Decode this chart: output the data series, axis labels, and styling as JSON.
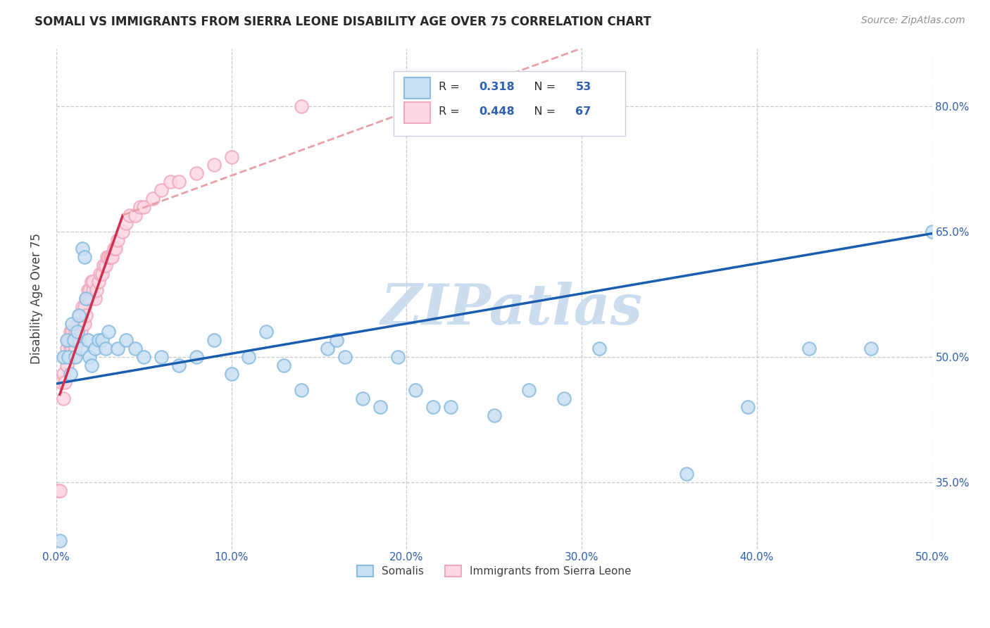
{
  "title": "SOMALI VS IMMIGRANTS FROM SIERRA LEONE DISABILITY AGE OVER 75 CORRELATION CHART",
  "source": "Source: ZipAtlas.com",
  "ylabel": "Disability Age Over 75",
  "xlim": [
    0.0,
    0.5
  ],
  "ylim": [
    0.27,
    0.87
  ],
  "xtick_labels": [
    "0.0%",
    "10.0%",
    "20.0%",
    "30.0%",
    "40.0%",
    "50.0%"
  ],
  "xtick_vals": [
    0.0,
    0.1,
    0.2,
    0.3,
    0.4,
    0.5
  ],
  "ytick_labels": [
    "35.0%",
    "50.0%",
    "65.0%",
    "80.0%"
  ],
  "ytick_vals": [
    0.35,
    0.5,
    0.65,
    0.8
  ],
  "legend_labels": [
    "Somalis",
    "Immigrants from Sierra Leone"
  ],
  "blue_color": "#88bbdd",
  "blue_fill": "#c8e0f4",
  "pink_color": "#f0a8be",
  "pink_fill": "#fcd8e4",
  "blue_line_color": "#1a5db0",
  "pink_line_color": "#d03050",
  "pink_dash_color": "#e8a0a8",
  "watermark_color": "#ccddf0",
  "title_color": "#282828",
  "source_color": "#909090",
  "blue_scatter_x": [
    0.002,
    0.004,
    0.006,
    0.007,
    0.008,
    0.009,
    0.01,
    0.011,
    0.012,
    0.013,
    0.014,
    0.015,
    0.016,
    0.017,
    0.018,
    0.019,
    0.02,
    0.022,
    0.024,
    0.026,
    0.028,
    0.03,
    0.035,
    0.04,
    0.045,
    0.05,
    0.06,
    0.07,
    0.08,
    0.09,
    0.1,
    0.11,
    0.12,
    0.13,
    0.14,
    0.155,
    0.16,
    0.165,
    0.175,
    0.185,
    0.195,
    0.205,
    0.215,
    0.225,
    0.25,
    0.27,
    0.29,
    0.31,
    0.36,
    0.395,
    0.43,
    0.465,
    0.5
  ],
  "blue_scatter_y": [
    0.28,
    0.5,
    0.52,
    0.5,
    0.48,
    0.54,
    0.52,
    0.5,
    0.53,
    0.55,
    0.51,
    0.63,
    0.62,
    0.57,
    0.52,
    0.5,
    0.49,
    0.51,
    0.52,
    0.52,
    0.51,
    0.53,
    0.51,
    0.52,
    0.51,
    0.5,
    0.5,
    0.49,
    0.5,
    0.52,
    0.48,
    0.5,
    0.53,
    0.49,
    0.46,
    0.51,
    0.52,
    0.5,
    0.45,
    0.44,
    0.5,
    0.46,
    0.44,
    0.44,
    0.43,
    0.46,
    0.45,
    0.51,
    0.36,
    0.44,
    0.51,
    0.51,
    0.65
  ],
  "pink_scatter_x": [
    0.001,
    0.002,
    0.003,
    0.004,
    0.004,
    0.005,
    0.005,
    0.006,
    0.006,
    0.007,
    0.007,
    0.008,
    0.008,
    0.009,
    0.009,
    0.01,
    0.01,
    0.011,
    0.011,
    0.012,
    0.012,
    0.013,
    0.013,
    0.014,
    0.014,
    0.015,
    0.015,
    0.016,
    0.016,
    0.017,
    0.017,
    0.018,
    0.018,
    0.019,
    0.019,
    0.02,
    0.02,
    0.021,
    0.021,
    0.022,
    0.023,
    0.024,
    0.025,
    0.026,
    0.027,
    0.028,
    0.029,
    0.03,
    0.031,
    0.032,
    0.033,
    0.034,
    0.035,
    0.038,
    0.04,
    0.042,
    0.045,
    0.048,
    0.05,
    0.055,
    0.06,
    0.065,
    0.07,
    0.08,
    0.09,
    0.1,
    0.14
  ],
  "pink_scatter_y": [
    0.34,
    0.34,
    0.47,
    0.45,
    0.48,
    0.47,
    0.5,
    0.49,
    0.51,
    0.5,
    0.52,
    0.51,
    0.53,
    0.51,
    0.53,
    0.5,
    0.52,
    0.51,
    0.53,
    0.52,
    0.54,
    0.52,
    0.55,
    0.53,
    0.54,
    0.54,
    0.56,
    0.54,
    0.56,
    0.55,
    0.57,
    0.57,
    0.58,
    0.57,
    0.58,
    0.57,
    0.59,
    0.58,
    0.59,
    0.57,
    0.58,
    0.59,
    0.6,
    0.6,
    0.61,
    0.61,
    0.62,
    0.62,
    0.62,
    0.62,
    0.63,
    0.63,
    0.64,
    0.65,
    0.66,
    0.67,
    0.67,
    0.68,
    0.68,
    0.69,
    0.7,
    0.71,
    0.71,
    0.72,
    0.73,
    0.74,
    0.8
  ],
  "blue_line": {
    "x0": 0.0,
    "x1": 0.5,
    "y0": 0.468,
    "y1": 0.648
  },
  "pink_line_solid": {
    "x0": 0.002,
    "x1": 0.038,
    "y0": 0.455,
    "y1": 0.67
  },
  "pink_line_dash": {
    "x0": 0.038,
    "x1": 0.3,
    "y0": 0.67,
    "y1": 0.87
  }
}
